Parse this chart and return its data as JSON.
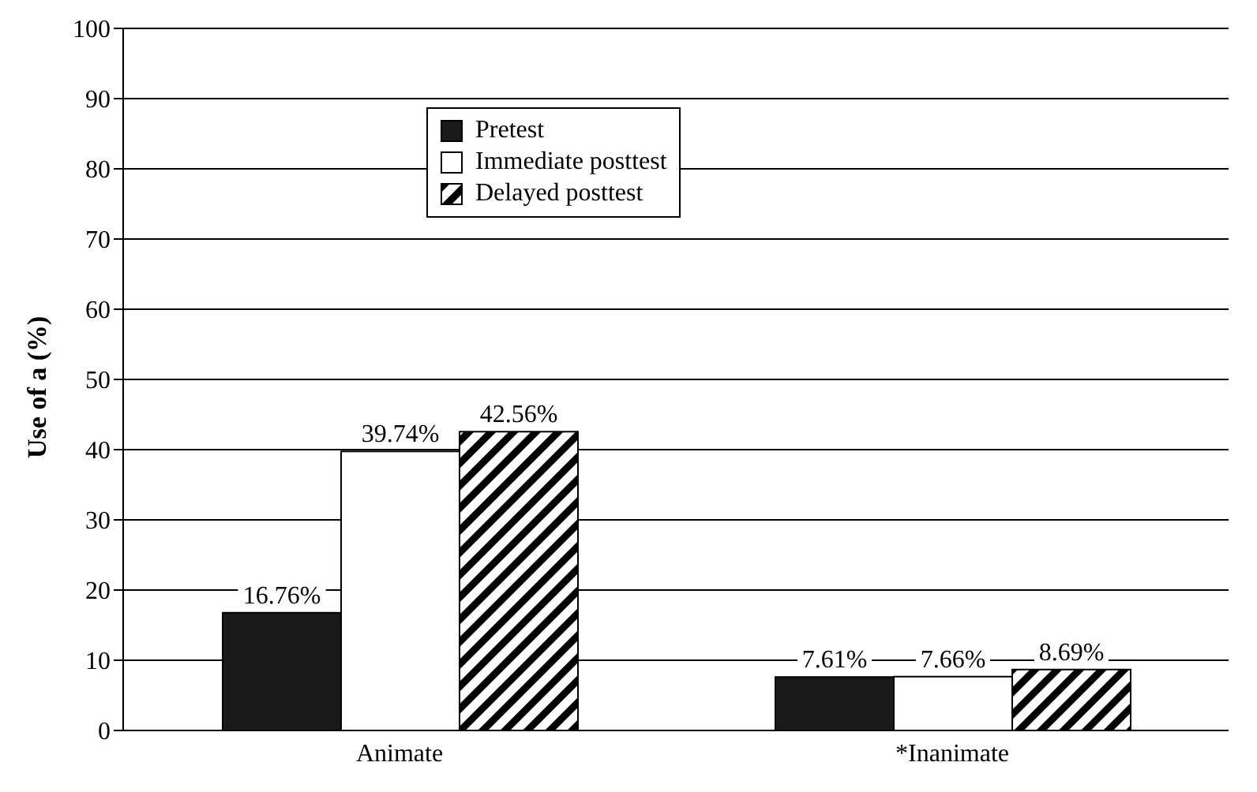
{
  "chart_data": {
    "type": "bar",
    "ylabel": "Use of a (%)",
    "categories": [
      "Animate",
      "*Inanimate"
    ],
    "series": [
      {
        "name": "Pretest",
        "color": "#1a1a1a",
        "values": [
          16.76,
          7.61
        ],
        "value_labels": [
          "16.76%",
          "7.61%"
        ]
      },
      {
        "name": "Immediate posttest",
        "color": "#ffffff",
        "values": [
          39.74,
          7.66
        ],
        "value_labels": [
          "39.74%",
          "7.66%"
        ]
      },
      {
        "name": "Delayed posttest",
        "color": "#000000",
        "values": [
          42.56,
          8.69
        ],
        "value_labels": [
          "42.56%",
          "8.69%"
        ]
      }
    ],
    "ylim": [
      0,
      100
    ],
    "yticks": [
      0,
      10,
      20,
      30,
      40,
      50,
      60,
      70,
      80,
      90,
      100
    ],
    "grid": "y",
    "legend": "top left"
  }
}
